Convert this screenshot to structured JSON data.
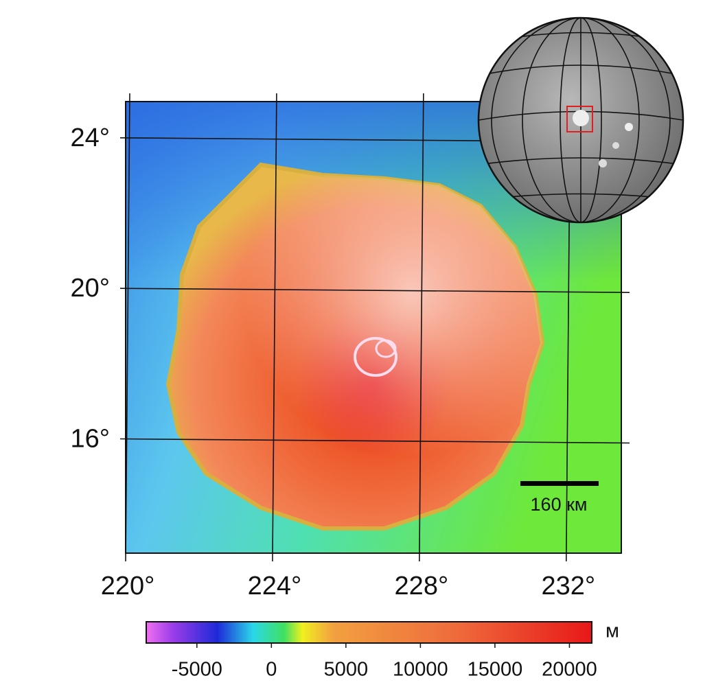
{
  "map": {
    "xlim": [
      220,
      233.5
    ],
    "ylim": [
      13,
      25
    ],
    "lon_ticks": [
      {
        "value": 220,
        "label": "220°"
      },
      {
        "value": 224,
        "label": "224°"
      },
      {
        "value": 228,
        "label": "228°"
      },
      {
        "value": 232,
        "label": "232°"
      }
    ],
    "lat_ticks": [
      {
        "value": 24,
        "label": "24°"
      },
      {
        "value": 20,
        "label": "20°"
      },
      {
        "value": 16,
        "label": "16°"
      }
    ],
    "scale_bar": "160 км",
    "colorbar": {
      "unit": "м",
      "lim": [
        -8400,
        21500
      ],
      "ticks": [
        -5000,
        0,
        5000,
        10000,
        15000,
        20000
      ]
    }
  }
}
